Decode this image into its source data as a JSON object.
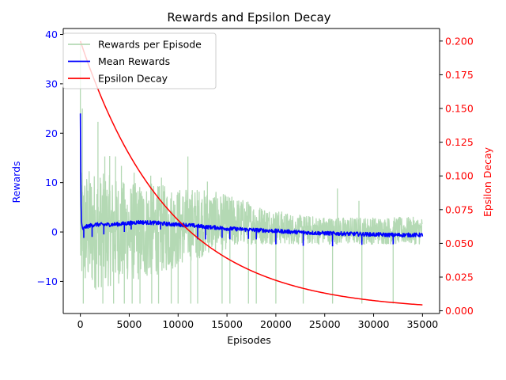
{
  "chart_data": {
    "type": "line",
    "title": "Rewards and Epsilon Decay",
    "xlabel": "Episodes",
    "ylabel_left": "Rewards",
    "ylabel_right": "Epsilon Decay",
    "xlim": [
      -1750,
      36750
    ],
    "ylim_left": [
      -16.5,
      41.2
    ],
    "ylim_right": [
      -0.002,
      0.2093
    ],
    "x_ticks": [
      0,
      5000,
      10000,
      15000,
      20000,
      25000,
      30000,
      35000
    ],
    "y_ticks_left": [
      -10,
      0,
      10,
      20,
      30,
      40
    ],
    "y_ticks_right": [
      0.0,
      0.025,
      0.05,
      0.075,
      0.1,
      0.125,
      0.15,
      0.175,
      0.2
    ],
    "grid": false,
    "legend_position": "top-left",
    "colors": {
      "rewards": "#b4d9b4",
      "mean": "#0000ff",
      "epsilon": "#ff0000",
      "left_axis": "#0000ff",
      "right_axis": "#ff0000"
    },
    "series": [
      {
        "name": "Rewards per Episode",
        "axis": "left",
        "envelope": {
          "x": [
            0,
            1000,
            2000,
            3000,
            4000,
            5000,
            6000,
            7000,
            8000,
            9000,
            10000,
            11000,
            12000,
            13000,
            14000,
            15000,
            16000,
            17000,
            18000,
            19000,
            20000,
            22000,
            24000,
            26000,
            28000,
            30000,
            32000,
            35000
          ],
          "upper": [
            12,
            13,
            12,
            11.5,
            10.5,
            10,
            10,
            10,
            9.5,
            9.5,
            9,
            9,
            9,
            8.5,
            8,
            7.5,
            7,
            6.5,
            5.5,
            5,
            4.5,
            3.5,
            3.2,
            3,
            3,
            3,
            3,
            3
          ],
          "lower": [
            -12,
            -12,
            -11.5,
            -11,
            -10.5,
            -10,
            -10,
            -9.5,
            -8.5,
            -8,
            -7,
            -6,
            -5.5,
            -4.5,
            -4,
            -3.5,
            -3,
            -2.5,
            -2.5,
            -2.5,
            -2.5,
            -2.5,
            -2.5,
            -2.5,
            -2.5,
            -2.5,
            -2.5,
            -2.5
          ]
        },
        "spikes_up": [
          [
            0,
            38
          ],
          [
            200,
            25
          ],
          [
            1800,
            22.3
          ],
          [
            2500,
            15.3
          ],
          [
            3000,
            15.4
          ],
          [
            3600,
            15.3
          ],
          [
            4200,
            13.4
          ],
          [
            5500,
            12
          ],
          [
            7200,
            11.4
          ],
          [
            8300,
            11
          ],
          [
            11000,
            15.3
          ],
          [
            13000,
            10.2
          ],
          [
            26300,
            8.8
          ],
          [
            28500,
            6.3
          ]
        ],
        "spikes_down": [
          [
            300,
            -14.5
          ],
          [
            2300,
            -14.5
          ],
          [
            3400,
            -14.5
          ],
          [
            4500,
            -14.5
          ],
          [
            5300,
            -14.5
          ],
          [
            6100,
            -14.5
          ],
          [
            7300,
            -14.5
          ],
          [
            8000,
            -14.5
          ],
          [
            9300,
            -14.5
          ],
          [
            10000,
            -14.5
          ],
          [
            11300,
            -14.5
          ],
          [
            12000,
            -14.5
          ],
          [
            14500,
            -14.5
          ],
          [
            15300,
            -14.5
          ],
          [
            17200,
            -14.5
          ],
          [
            18000,
            -14.5
          ],
          [
            20000,
            -14.5
          ],
          [
            22800,
            -14.5
          ],
          [
            25800,
            -14.5
          ],
          [
            28800,
            -14.5
          ],
          [
            32000,
            -14.5
          ]
        ]
      },
      {
        "name": "Mean Rewards",
        "axis": "left",
        "x": [
          0,
          50,
          100,
          150,
          250,
          500,
          1000,
          1500,
          2000,
          3000,
          4000,
          5000,
          6000,
          7000,
          8000,
          9000,
          10000,
          11000,
          12000,
          13000,
          14000,
          15000,
          16000,
          17000,
          18000,
          19000,
          20000,
          22000,
          24000,
          26000,
          28000,
          30000,
          32000,
          35000
        ],
        "y": [
          24,
          9,
          2.5,
          1.5,
          0.5,
          1,
          1.3,
          1.5,
          1.5,
          1.5,
          1.6,
          1.8,
          2,
          1.9,
          1.8,
          1.6,
          1.5,
          1.4,
          1.2,
          1.0,
          0.9,
          0.7,
          0.6,
          0.5,
          0.4,
          0.3,
          0.2,
          0,
          -0.2,
          -0.3,
          -0.4,
          -0.5,
          -0.6,
          -0.6
        ],
        "dips": [
          [
            350,
            -1.2
          ],
          [
            1200,
            -1
          ],
          [
            2400,
            -0.5
          ],
          [
            4500,
            0
          ],
          [
            5200,
            0.5
          ],
          [
            8200,
            0.5
          ],
          [
            12000,
            -1.5
          ],
          [
            12800,
            -1.5
          ],
          [
            14500,
            -1.2
          ],
          [
            15300,
            -1.5
          ],
          [
            17200,
            -1.4
          ],
          [
            18000,
            -1.5
          ],
          [
            20000,
            -2.5
          ],
          [
            22800,
            -2.8
          ],
          [
            25800,
            -2.9
          ],
          [
            28800,
            -2.6
          ],
          [
            32000,
            -2.5
          ]
        ]
      },
      {
        "name": "Epsilon Decay",
        "axis": "right",
        "function": "0.2 * exp(-x / 9130)",
        "x_range": [
          0,
          35000
        ],
        "y_start": 0.2,
        "y_end": 0.0044
      }
    ]
  }
}
